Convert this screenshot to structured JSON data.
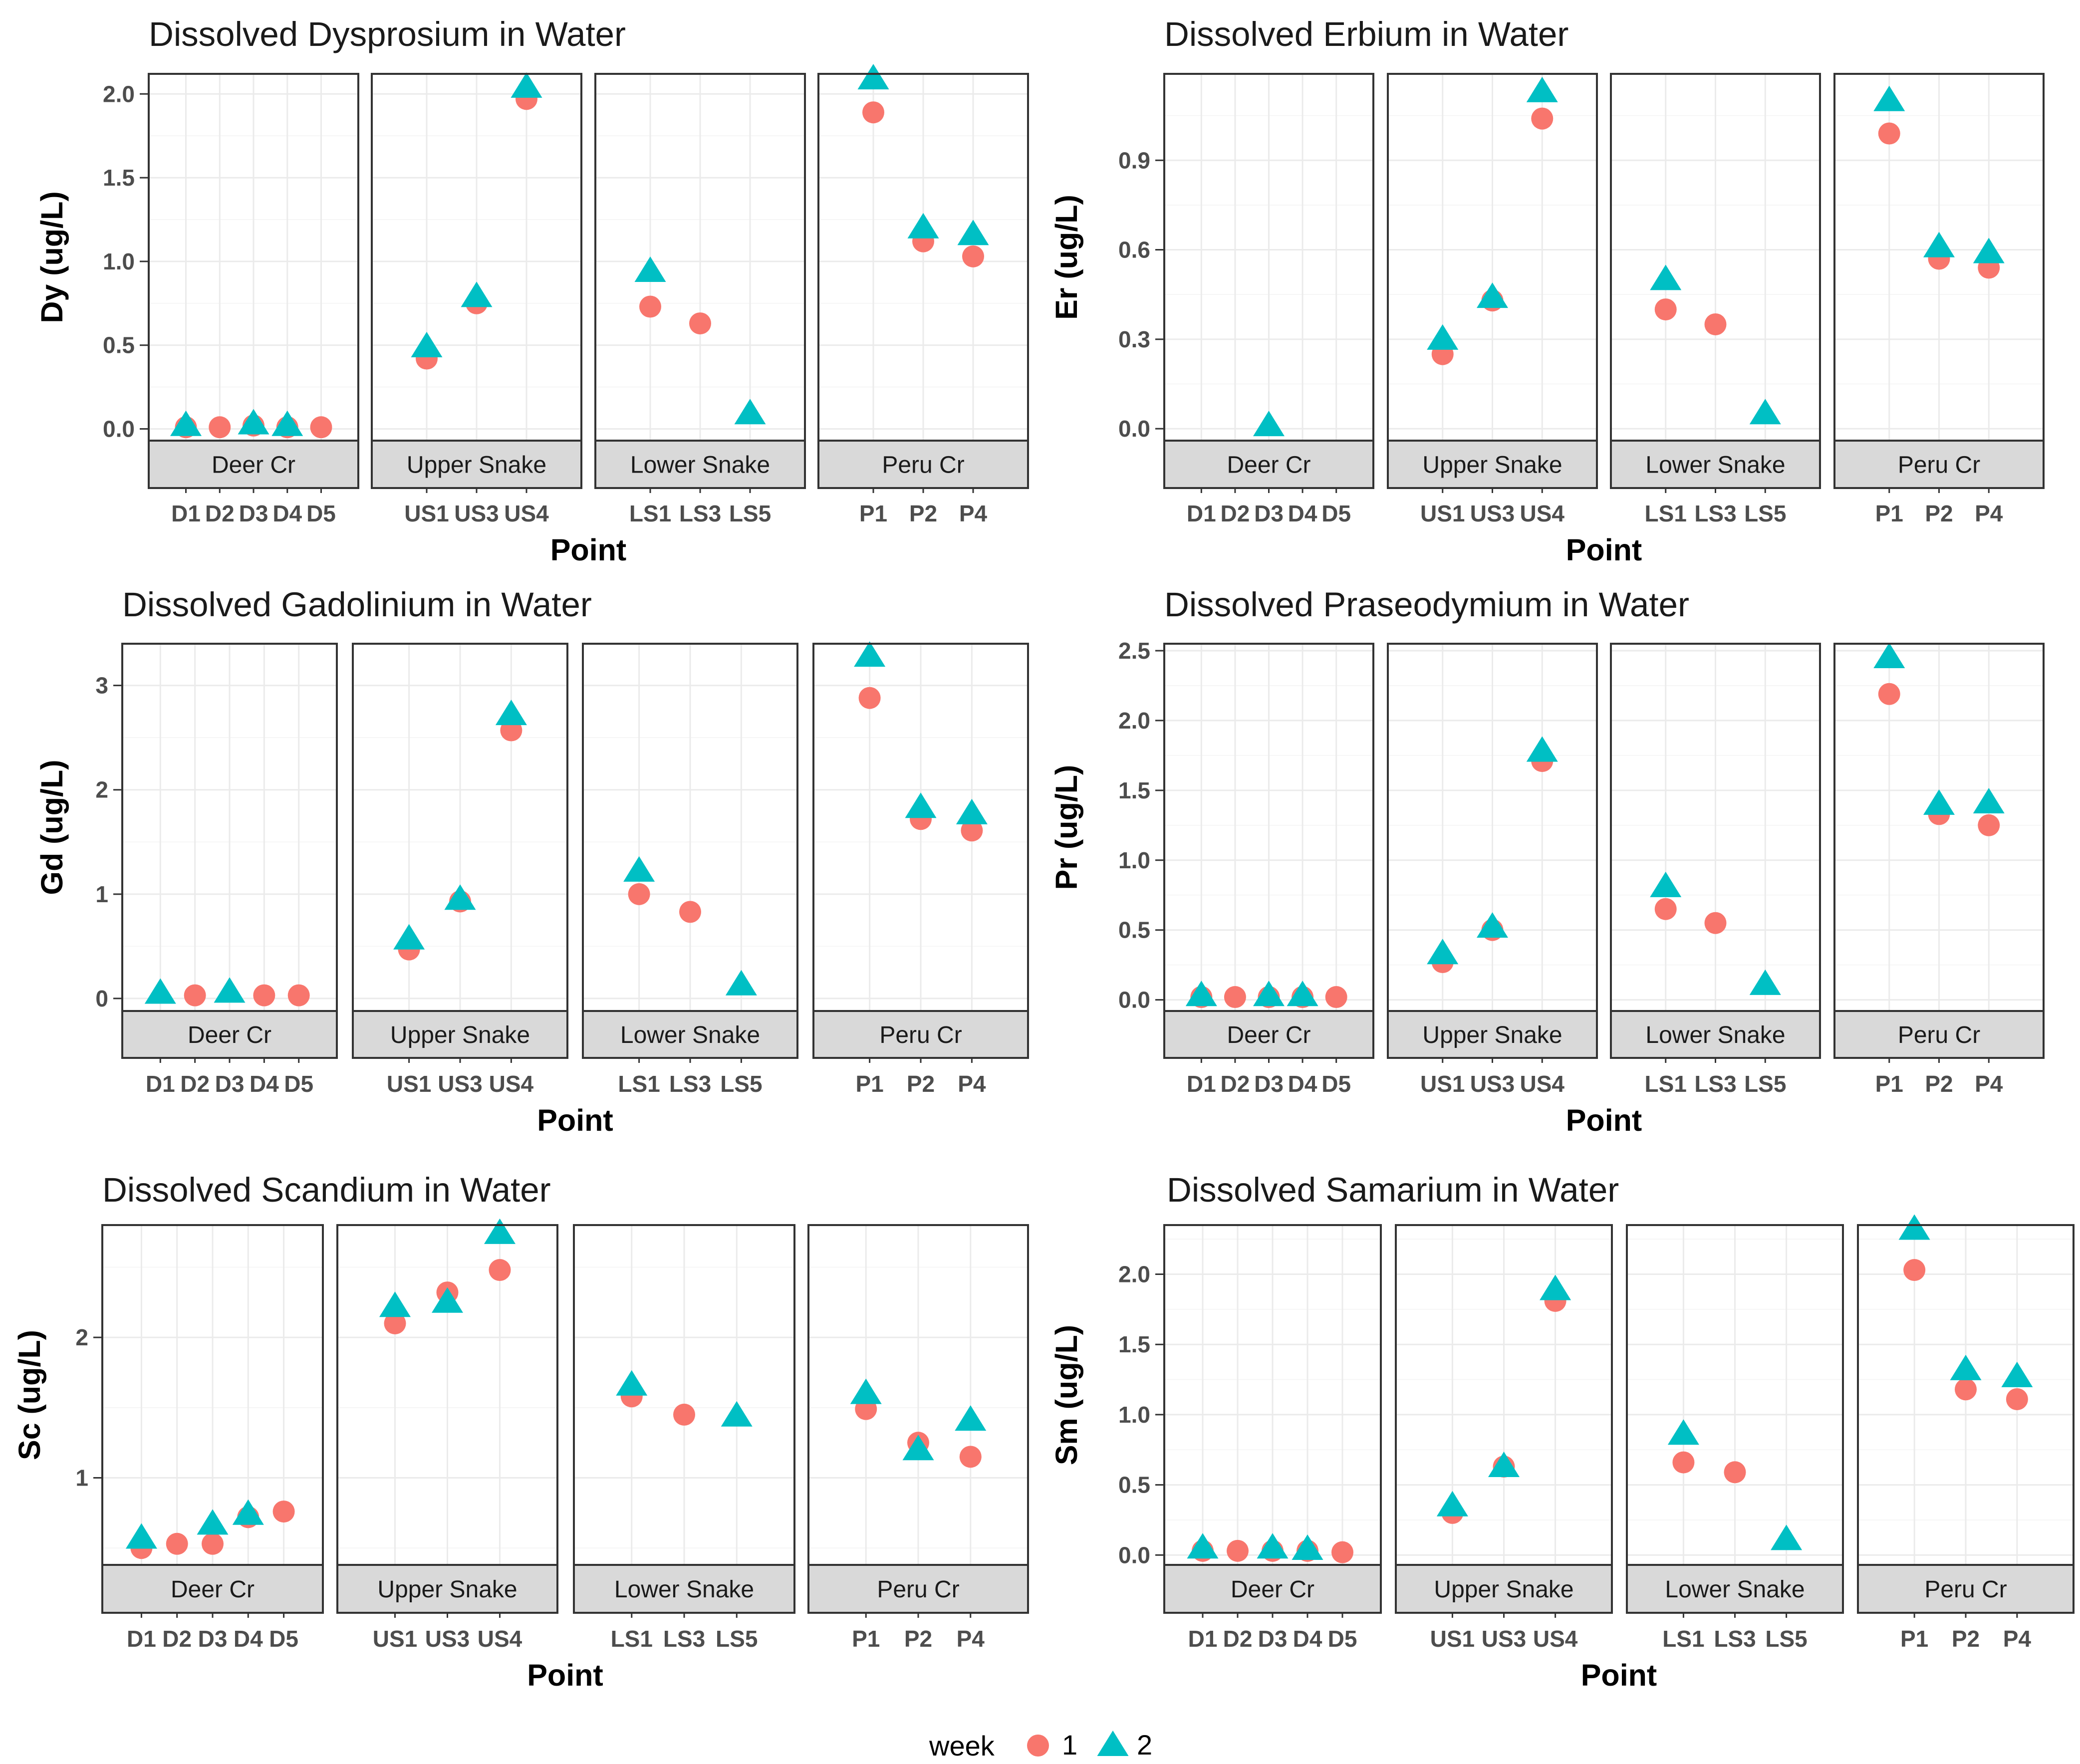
{
  "colors": {
    "week1": "#F8766D",
    "week2": "#00BFC4"
  },
  "legend": {
    "title": "week",
    "items": [
      {
        "label": "1",
        "shape": "circle",
        "color": "#F8766D"
      },
      {
        "label": "2",
        "shape": "triangle",
        "color": "#00BFC4"
      }
    ]
  },
  "chart_data": [
    {
      "type": "scatter",
      "title": "Dissolved Dysprosium in Water",
      "xlabel": "Point",
      "ylabel": "Dy (ug/L)",
      "ylim": [
        -0.07,
        2.12
      ],
      "yticks": [
        0,
        0.5,
        1,
        1.5,
        2
      ],
      "ytick_labels": [
        "0.0",
        "0.5",
        "1.0",
        "1.5",
        "2.0"
      ],
      "facets": [
        {
          "name": "Deer Cr",
          "categories": [
            "D1",
            "D2",
            "D3",
            "D4",
            "D5"
          ],
          "week1": [
            0.01,
            0.01,
            0.02,
            0.01,
            0.01
          ],
          "week2": [
            0.02,
            null,
            0.03,
            0.02,
            null
          ]
        },
        {
          "name": "Upper Snake",
          "categories": [
            "US1",
            "US3",
            "US4"
          ],
          "week1": [
            0.42,
            0.75,
            1.97
          ],
          "week2": [
            0.49,
            0.79,
            2.04
          ]
        },
        {
          "name": "Lower Snake",
          "categories": [
            "LS1",
            "LS3",
            "LS5"
          ],
          "week1": [
            0.73,
            0.63,
            null
          ],
          "week2": [
            0.94,
            null,
            0.09
          ]
        },
        {
          "name": "Peru Cr",
          "categories": [
            "P1",
            "P2",
            "P4"
          ],
          "week1": [
            1.89,
            1.12,
            1.03
          ],
          "week2": [
            2.09,
            1.2,
            1.16
          ]
        }
      ]
    },
    {
      "type": "scatter",
      "title": "Dissolved Erbium in Water",
      "xlabel": "Point",
      "ylabel": "Er (ug/L)",
      "ylim": [
        -0.04,
        1.19
      ],
      "yticks": [
        0,
        0.3,
        0.6,
        0.9
      ],
      "ytick_labels": [
        "0.0",
        "0.3",
        "0.6",
        "0.9"
      ],
      "facets": [
        {
          "name": "Deer Cr",
          "categories": [
            "D1",
            "D2",
            "D3",
            "D4",
            "D5"
          ],
          "week1": [
            null,
            null,
            null,
            null,
            null
          ],
          "week2": [
            null,
            null,
            0.01,
            null,
            null
          ]
        },
        {
          "name": "Upper Snake",
          "categories": [
            "US1",
            "US3",
            "US4"
          ],
          "week1": [
            0.25,
            0.43,
            1.04
          ],
          "week2": [
            0.3,
            0.44,
            1.13
          ]
        },
        {
          "name": "Lower Snake",
          "categories": [
            "LS1",
            "LS3",
            "LS5"
          ],
          "week1": [
            0.4,
            0.35,
            null
          ],
          "week2": [
            0.5,
            null,
            0.05
          ]
        },
        {
          "name": "Peru Cr",
          "categories": [
            "P1",
            "P2",
            "P4"
          ],
          "week1": [
            0.99,
            0.57,
            0.54
          ],
          "week2": [
            1.1,
            0.61,
            0.59
          ]
        }
      ]
    },
    {
      "type": "scatter",
      "title": "Dissolved Gadolinium in Water",
      "xlabel": "Point",
      "ylabel": "Gd (ug/L)",
      "ylim": [
        -0.12,
        3.4
      ],
      "yticks": [
        0,
        1,
        2,
        3
      ],
      "ytick_labels": [
        "0",
        "1",
        "2",
        "3"
      ],
      "facets": [
        {
          "name": "Deer Cr",
          "categories": [
            "D1",
            "D2",
            "D3",
            "D4",
            "D5"
          ],
          "week1": [
            null,
            0.03,
            null,
            0.03,
            0.03
          ],
          "week2": [
            0.05,
            null,
            0.06,
            null,
            null
          ]
        },
        {
          "name": "Upper Snake",
          "categories": [
            "US1",
            "US3",
            "US4"
          ],
          "week1": [
            0.47,
            0.93,
            2.57
          ],
          "week2": [
            0.57,
            0.95,
            2.72
          ]
        },
        {
          "name": "Lower Snake",
          "categories": [
            "LS1",
            "LS3",
            "LS5"
          ],
          "week1": [
            1.0,
            0.83,
            null
          ],
          "week2": [
            1.22,
            null,
            0.13
          ]
        },
        {
          "name": "Peru Cr",
          "categories": [
            "P1",
            "P2",
            "P4"
          ],
          "week1": [
            2.88,
            1.72,
            1.61
          ],
          "week2": [
            3.28,
            1.83,
            1.77
          ]
        }
      ]
    },
    {
      "type": "scatter",
      "title": "Dissolved Praseodymium in Water",
      "xlabel": "Point",
      "ylabel": "Pr (ug/L)",
      "ylim": [
        -0.08,
        2.55
      ],
      "yticks": [
        0,
        0.5,
        1,
        1.5,
        2,
        2.5
      ],
      "ytick_labels": [
        "0.0",
        "0.5",
        "1.0",
        "1.5",
        "2.0",
        "2.5"
      ],
      "facets": [
        {
          "name": "Deer Cr",
          "categories": [
            "D1",
            "D2",
            "D3",
            "D4",
            "D5"
          ],
          "week1": [
            0.02,
            0.02,
            0.02,
            0.02,
            0.02
          ],
          "week2": [
            0.03,
            null,
            0.03,
            0.03,
            null
          ]
        },
        {
          "name": "Upper Snake",
          "categories": [
            "US1",
            "US3",
            "US4"
          ],
          "week1": [
            0.27,
            0.5,
            1.71
          ],
          "week2": [
            0.33,
            0.52,
            1.78
          ]
        },
        {
          "name": "Lower Snake",
          "categories": [
            "LS1",
            "LS3",
            "LS5"
          ],
          "week1": [
            0.65,
            0.55,
            null
          ],
          "week2": [
            0.81,
            null,
            0.11
          ]
        },
        {
          "name": "Peru Cr",
          "categories": [
            "P1",
            "P2",
            "P4"
          ],
          "week1": [
            2.19,
            1.33,
            1.25
          ],
          "week2": [
            2.45,
            1.4,
            1.41
          ]
        }
      ]
    },
    {
      "type": "scatter",
      "title": "Dissolved Scandium in Water",
      "xlabel": "Point",
      "ylabel": "Sc (ug/L)",
      "ylim": [
        0.38,
        2.8
      ],
      "yticks": [
        1,
        2
      ],
      "ytick_labels": [
        "1",
        "2"
      ],
      "facets": [
        {
          "name": "Deer Cr",
          "categories": [
            "D1",
            "D2",
            "D3",
            "D4",
            "D5"
          ],
          "week1": [
            0.5,
            0.53,
            0.53,
            0.72,
            0.76
          ],
          "week2": [
            0.57,
            null,
            0.67,
            0.74,
            null
          ]
        },
        {
          "name": "Upper Snake",
          "categories": [
            "US1",
            "US3",
            "US4"
          ],
          "week1": [
            2.1,
            2.32,
            2.48
          ],
          "week2": [
            2.22,
            2.25,
            2.74
          ]
        },
        {
          "name": "Lower Snake",
          "categories": [
            "LS1",
            "LS3",
            "LS5"
          ],
          "week1": [
            1.58,
            1.45,
            null
          ],
          "week2": [
            1.66,
            null,
            1.44
          ]
        },
        {
          "name": "Peru Cr",
          "categories": [
            "P1",
            "P2",
            "P4"
          ],
          "week1": [
            1.49,
            1.25,
            1.15
          ],
          "week2": [
            1.6,
            1.2,
            1.41
          ]
        }
      ]
    },
    {
      "type": "scatter",
      "title": "Dissolved Samarium in Water",
      "xlabel": "Point",
      "ylabel": "Sm (ug/L)",
      "ylim": [
        -0.07,
        2.35
      ],
      "yticks": [
        0,
        0.5,
        1,
        1.5,
        2
      ],
      "ytick_labels": [
        "0.0",
        "0.5",
        "1.0",
        "1.5",
        "2.0"
      ],
      "facets": [
        {
          "name": "Deer Cr",
          "categories": [
            "D1",
            "D2",
            "D3",
            "D4",
            "D5"
          ],
          "week1": [
            0.03,
            0.03,
            0.03,
            0.03,
            0.02
          ],
          "week2": [
            0.05,
            null,
            0.05,
            0.04,
            null
          ]
        },
        {
          "name": "Upper Snake",
          "categories": [
            "US1",
            "US3",
            "US4"
          ],
          "week1": [
            0.3,
            0.63,
            1.81
          ],
          "week2": [
            0.35,
            0.63,
            1.89
          ]
        },
        {
          "name": "Lower Snake",
          "categories": [
            "LS1",
            "LS3",
            "LS5"
          ],
          "week1": [
            0.66,
            0.59,
            null
          ],
          "week2": [
            0.86,
            null,
            0.11
          ]
        },
        {
          "name": "Peru Cr",
          "categories": [
            "P1",
            "P2",
            "P4"
          ],
          "week1": [
            2.03,
            1.18,
            1.11
          ],
          "week2": [
            2.32,
            1.32,
            1.27
          ]
        }
      ]
    }
  ]
}
